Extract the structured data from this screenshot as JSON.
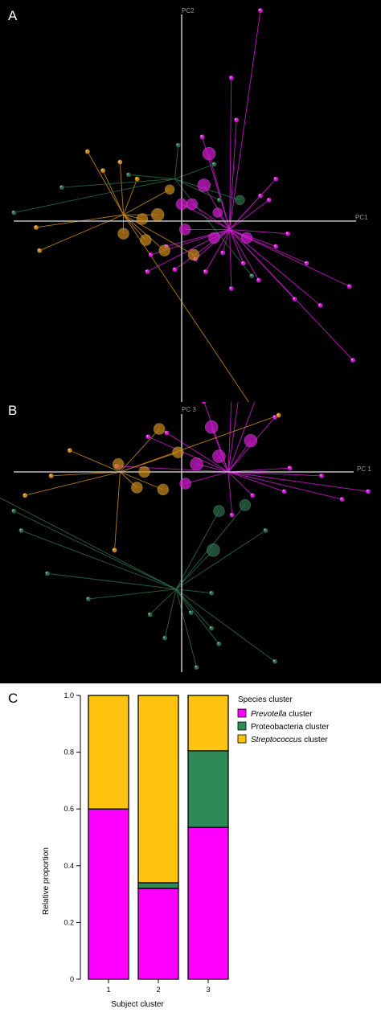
{
  "colors": {
    "prevotella": "#d21ad2",
    "proteobacteria": "#2b6b4a",
    "streptococcus": "#c9881a",
    "axis": "#bdbdbd",
    "bar_prevotella": "#ff00ff",
    "bar_proteobacteria": "#2e8b57",
    "bar_streptococcus": "#ffc20e"
  },
  "panels": {
    "a": {
      "letter": "A",
      "x_axis_name": "PC1",
      "y_axis_name": "PC2"
    },
    "b": {
      "letter": "B",
      "x_axis_name": "PC 1",
      "y_axis_name": "PC 3"
    },
    "c": {
      "letter": "C"
    }
  },
  "chart_data": [
    {
      "type": "scatter",
      "panel": "A",
      "xlabel": "PC1",
      "ylabel": "PC2",
      "xlim": [
        -1,
        1
      ],
      "ylim": [
        -1,
        1
      ],
      "grid": false,
      "centroids": [
        {
          "cluster": "prevotella",
          "x": 0.28,
          "y": -0.04
        },
        {
          "cluster": "streptococcus",
          "x": -0.34,
          "y": 0.03
        },
        {
          "cluster": "proteobacteria",
          "x": -0.04,
          "y": 0.2
        }
      ],
      "points": [
        {
          "cluster": "prevotella",
          "x": 0.46,
          "y": 1.0,
          "size": 3
        },
        {
          "cluster": "prevotella",
          "x": 0.29,
          "y": 0.68,
          "size": 3
        },
        {
          "cluster": "prevotella",
          "x": 0.32,
          "y": 0.48,
          "size": 3
        },
        {
          "cluster": "prevotella",
          "x": 0.16,
          "y": 0.32,
          "size": 8
        },
        {
          "cluster": "prevotella",
          "x": 0.13,
          "y": 0.17,
          "size": 8
        },
        {
          "cluster": "prevotella",
          "x": 0.06,
          "y": 0.08,
          "size": 7
        },
        {
          "cluster": "prevotella",
          "x": 0.0,
          "y": 0.08,
          "size": 7
        },
        {
          "cluster": "prevotella",
          "x": 0.21,
          "y": 0.04,
          "size": 6
        },
        {
          "cluster": "prevotella",
          "x": 0.02,
          "y": -0.04,
          "size": 7
        },
        {
          "cluster": "prevotella",
          "x": 0.19,
          "y": -0.08,
          "size": 7
        },
        {
          "cluster": "prevotella",
          "x": 0.38,
          "y": -0.08,
          "size": 7
        },
        {
          "cluster": "prevotella",
          "x": 0.51,
          "y": 0.1,
          "size": 3
        },
        {
          "cluster": "prevotella",
          "x": 0.62,
          "y": -0.06,
          "size": 3
        },
        {
          "cluster": "prevotella",
          "x": 0.73,
          "y": -0.2,
          "size": 3
        },
        {
          "cluster": "prevotella",
          "x": 0.98,
          "y": -0.31,
          "size": 3
        },
        {
          "cluster": "prevotella",
          "x": 1.0,
          "y": -0.66,
          "size": 3
        },
        {
          "cluster": "prevotella",
          "x": 0.81,
          "y": -0.4,
          "size": 3
        },
        {
          "cluster": "prevotella",
          "x": 0.66,
          "y": -0.37,
          "size": 3
        },
        {
          "cluster": "prevotella",
          "x": 0.45,
          "y": -0.28,
          "size": 3
        },
        {
          "cluster": "prevotella",
          "x": 0.29,
          "y": -0.32,
          "size": 3
        },
        {
          "cluster": "prevotella",
          "x": 0.14,
          "y": -0.24,
          "size": 3
        },
        {
          "cluster": "prevotella",
          "x": -0.04,
          "y": -0.23,
          "size": 3
        },
        {
          "cluster": "prevotella",
          "x": -0.18,
          "y": -0.16,
          "size": 3
        },
        {
          "cluster": "prevotella",
          "x": -0.2,
          "y": -0.24,
          "size": 3
        },
        {
          "cluster": "prevotella",
          "x": 0.55,
          "y": 0.2,
          "size": 3
        },
        {
          "cluster": "prevotella",
          "x": 0.46,
          "y": 0.12,
          "size": 3
        },
        {
          "cluster": "prevotella",
          "x": 0.12,
          "y": 0.4,
          "size": 3
        },
        {
          "cluster": "prevotella",
          "x": 0.08,
          "y": -0.18,
          "size": 3
        },
        {
          "cluster": "prevotella",
          "x": 0.55,
          "y": -0.12,
          "size": 3
        },
        {
          "cluster": "prevotella",
          "x": 0.36,
          "y": -0.2,
          "size": 3
        },
        {
          "cluster": "prevotella",
          "x": 0.24,
          "y": -0.15,
          "size": 3
        },
        {
          "cluster": "prevotella",
          "x": -0.09,
          "y": -0.12,
          "size": 3
        },
        {
          "cluster": "streptococcus",
          "x": -0.55,
          "y": 0.33,
          "size": 3
        },
        {
          "cluster": "streptococcus",
          "x": -0.36,
          "y": 0.28,
          "size": 3
        },
        {
          "cluster": "streptococcus",
          "x": -0.26,
          "y": 0.2,
          "size": 3
        },
        {
          "cluster": "streptococcus",
          "x": -0.07,
          "y": 0.15,
          "size": 6
        },
        {
          "cluster": "streptococcus",
          "x": -0.14,
          "y": 0.03,
          "size": 8
        },
        {
          "cluster": "streptococcus",
          "x": -0.23,
          "y": 0.01,
          "size": 7
        },
        {
          "cluster": "streptococcus",
          "x": -0.34,
          "y": -0.06,
          "size": 7
        },
        {
          "cluster": "streptococcus",
          "x": -0.21,
          "y": -0.09,
          "size": 7
        },
        {
          "cluster": "streptococcus",
          "x": -0.1,
          "y": -0.14,
          "size": 7
        },
        {
          "cluster": "streptococcus",
          "x": 0.07,
          "y": -0.16,
          "size": 7
        },
        {
          "cluster": "streptococcus",
          "x": -0.83,
          "y": -0.14,
          "size": 3
        },
        {
          "cluster": "streptococcus",
          "x": -0.85,
          "y": -0.03,
          "size": 3
        },
        {
          "cluster": "streptococcus",
          "x": 0.45,
          "y": -0.93,
          "size": 3
        },
        {
          "cluster": "streptococcus",
          "x": -0.46,
          "y": 0.24,
          "size": 3
        },
        {
          "cluster": "proteobacteria",
          "x": -0.7,
          "y": 0.16,
          "size": 3
        },
        {
          "cluster": "proteobacteria",
          "x": -0.98,
          "y": 0.04,
          "size": 3
        },
        {
          "cluster": "proteobacteria",
          "x": -0.02,
          "y": 0.36,
          "size": 3
        },
        {
          "cluster": "proteobacteria",
          "x": 0.19,
          "y": 0.27,
          "size": 3
        },
        {
          "cluster": "proteobacteria",
          "x": 0.34,
          "y": 0.1,
          "size": 6
        },
        {
          "cluster": "proteobacteria",
          "x": 0.22,
          "y": 0.1,
          "size": 3
        },
        {
          "cluster": "proteobacteria",
          "x": 0.41,
          "y": -0.26,
          "size": 3
        },
        {
          "cluster": "proteobacteria",
          "x": -0.31,
          "y": 0.22,
          "size": 3
        }
      ]
    },
    {
      "type": "scatter",
      "panel": "B",
      "xlabel": "PC 1",
      "ylabel": "PC 3",
      "xlim": [
        -1,
        1
      ],
      "ylim": [
        -1,
        1
      ],
      "grid": false,
      "centroids": [
        {
          "cluster": "prevotella",
          "x": 0.25,
          "y": 0.0
        },
        {
          "cluster": "streptococcus",
          "x": -0.33,
          "y": 0.0
        },
        {
          "cluster": "proteobacteria",
          "x": -0.03,
          "y": -0.6
        }
      ],
      "points": [
        {
          "cluster": "prevotella",
          "x": 0.32,
          "y": 0.48,
          "size": 3
        },
        {
          "cluster": "prevotella",
          "x": 0.27,
          "y": 0.43,
          "size": 3
        },
        {
          "cluster": "prevotella",
          "x": 0.4,
          "y": 0.38,
          "size": 3
        },
        {
          "cluster": "prevotella",
          "x": 0.16,
          "y": 0.23,
          "size": 8
        },
        {
          "cluster": "prevotella",
          "x": 0.37,
          "y": 0.16,
          "size": 8
        },
        {
          "cluster": "prevotella",
          "x": 0.2,
          "y": 0.08,
          "size": 8
        },
        {
          "cluster": "prevotella",
          "x": 0.08,
          "y": 0.04,
          "size": 8
        },
        {
          "cluster": "prevotella",
          "x": 0.02,
          "y": -0.06,
          "size": 7
        },
        {
          "cluster": "prevotella",
          "x": 0.58,
          "y": 0.02,
          "size": 3
        },
        {
          "cluster": "prevotella",
          "x": 0.75,
          "y": -0.02,
          "size": 3
        },
        {
          "cluster": "prevotella",
          "x": 1.0,
          "y": -0.1,
          "size": 3
        },
        {
          "cluster": "prevotella",
          "x": 0.86,
          "y": -0.14,
          "size": 3
        },
        {
          "cluster": "prevotella",
          "x": 0.55,
          "y": -0.1,
          "size": 3
        },
        {
          "cluster": "prevotella",
          "x": 0.38,
          "y": -0.12,
          "size": 3
        },
        {
          "cluster": "prevotella",
          "x": 0.27,
          "y": -0.22,
          "size": 3
        },
        {
          "cluster": "prevotella",
          "x": -0.08,
          "y": 0.2,
          "size": 3
        },
        {
          "cluster": "prevotella",
          "x": -0.18,
          "y": 0.18,
          "size": 3
        },
        {
          "cluster": "prevotella",
          "x": -0.35,
          "y": 0.03,
          "size": 3
        },
        {
          "cluster": "prevotella",
          "x": 0.12,
          "y": 0.36,
          "size": 3
        },
        {
          "cluster": "prevotella",
          "x": 0.5,
          "y": 0.28,
          "size": 3
        },
        {
          "cluster": "streptococcus",
          "x": -0.34,
          "y": 0.04,
          "size": 7
        },
        {
          "cluster": "streptococcus",
          "x": -0.12,
          "y": 0.22,
          "size": 7
        },
        {
          "cluster": "streptococcus",
          "x": -0.2,
          "y": 0.0,
          "size": 7
        },
        {
          "cluster": "streptococcus",
          "x": -0.24,
          "y": -0.08,
          "size": 7
        },
        {
          "cluster": "streptococcus",
          "x": -0.1,
          "y": -0.09,
          "size": 7
        },
        {
          "cluster": "streptococcus",
          "x": -0.02,
          "y": 0.1,
          "size": 7
        },
        {
          "cluster": "streptococcus",
          "x": -0.84,
          "y": -0.12,
          "size": 3
        },
        {
          "cluster": "streptococcus",
          "x": -0.7,
          "y": -0.02,
          "size": 3
        },
        {
          "cluster": "streptococcus",
          "x": -0.36,
          "y": -0.4,
          "size": 3
        },
        {
          "cluster": "streptococcus",
          "x": 0.52,
          "y": 0.29,
          "size": 3
        },
        {
          "cluster": "streptococcus",
          "x": -0.6,
          "y": 0.11,
          "size": 3
        },
        {
          "cluster": "proteobacteria",
          "x": 0.2,
          "y": -0.2,
          "size": 7
        },
        {
          "cluster": "proteobacteria",
          "x": 0.34,
          "y": -0.17,
          "size": 7
        },
        {
          "cluster": "proteobacteria",
          "x": 0.17,
          "y": -0.4,
          "size": 8
        },
        {
          "cluster": "proteobacteria",
          "x": -1.0,
          "y": -0.12,
          "size": 3
        },
        {
          "cluster": "proteobacteria",
          "x": -0.86,
          "y": -0.3,
          "size": 3
        },
        {
          "cluster": "proteobacteria",
          "x": -0.72,
          "y": -0.52,
          "size": 3
        },
        {
          "cluster": "proteobacteria",
          "x": -0.5,
          "y": -0.65,
          "size": 3
        },
        {
          "cluster": "proteobacteria",
          "x": -0.17,
          "y": -0.73,
          "size": 3
        },
        {
          "cluster": "proteobacteria",
          "x": -0.09,
          "y": -0.85,
          "size": 3
        },
        {
          "cluster": "proteobacteria",
          "x": 0.16,
          "y": -0.8,
          "size": 3
        },
        {
          "cluster": "proteobacteria",
          "x": 0.2,
          "y": -0.88,
          "size": 3
        },
        {
          "cluster": "proteobacteria",
          "x": 0.5,
          "y": -0.97,
          "size": 3
        },
        {
          "cluster": "proteobacteria",
          "x": 0.08,
          "y": -1.0,
          "size": 3
        },
        {
          "cluster": "proteobacteria",
          "x": 0.16,
          "y": -0.62,
          "size": 3
        },
        {
          "cluster": "proteobacteria",
          "x": -0.9,
          "y": -0.2,
          "size": 3
        },
        {
          "cluster": "proteobacteria",
          "x": 0.05,
          "y": -0.72,
          "size": 3
        },
        {
          "cluster": "proteobacteria",
          "x": 0.45,
          "y": -0.3,
          "size": 3
        }
      ]
    },
    {
      "type": "bar",
      "panel": "C",
      "stacked": true,
      "xlabel": "Subject cluster",
      "ylabel": "Relative proportion",
      "categories": [
        "1",
        "2",
        "3"
      ],
      "ylim": [
        0,
        1
      ],
      "yticks": [
        "0",
        "0.2",
        "0.4",
        "0.6",
        "0.8",
        "1.0"
      ],
      "legend_title": "Species cluster",
      "legend_position": "top-right",
      "series": [
        {
          "key": "prevotella",
          "name_italic": "Prevotella",
          "name_rest": " cluster",
          "values": [
            0.6,
            0.32,
            0.535
          ]
        },
        {
          "key": "proteobacteria",
          "name_italic": "",
          "name_rest": "Proteobacteria cluster",
          "values": [
            0.0,
            0.02,
            0.27
          ]
        },
        {
          "key": "streptococcus",
          "name_italic": "Streptococcus",
          "name_rest": " cluster",
          "values": [
            0.4,
            0.66,
            0.195
          ]
        }
      ]
    }
  ]
}
